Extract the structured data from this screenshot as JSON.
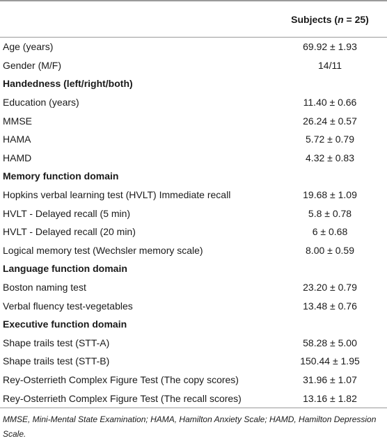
{
  "header": {
    "col1": "",
    "col2_prefix": "Subjects (",
    "col2_n": "n",
    "col2_suffix": " = 25)"
  },
  "rows": [
    {
      "label": "Age (years)",
      "value": "69.92 ± 1.93",
      "section": false
    },
    {
      "label": "Gender (M/F)",
      "value": "14/11",
      "section": false
    },
    {
      "label": "Handedness (left/right/both)",
      "value": "",
      "section": true
    },
    {
      "label": "Education (years)",
      "value": "11.40 ± 0.66",
      "section": false
    },
    {
      "label": "MMSE",
      "value": "26.24 ± 0.57",
      "section": false
    },
    {
      "label": "HAMA",
      "value": "5.72 ± 0.79",
      "section": false
    },
    {
      "label": "HAMD",
      "value": "4.32 ± 0.83",
      "section": false
    },
    {
      "label": "Memory function domain",
      "value": "",
      "section": true
    },
    {
      "label": "Hopkins verbal learning test (HVLT) Immediate recall",
      "value": "19.68 ± 1.09",
      "section": false
    },
    {
      "label": "HVLT - Delayed recall (5 min)",
      "value": "5.8 ± 0.78",
      "section": false
    },
    {
      "label": "HVLT - Delayed recall (20 min)",
      "value": "6 ± 0.68",
      "section": false
    },
    {
      "label": "Logical memory test (Wechsler memory scale)",
      "value": "8.00 ± 0.59",
      "section": false
    },
    {
      "label": "Language function domain",
      "value": "",
      "section": true
    },
    {
      "label": "Boston naming test",
      "value": "23.20 ± 0.79",
      "section": false
    },
    {
      "label": "Verbal fluency test-vegetables",
      "value": "13.48 ± 0.76",
      "section": false
    },
    {
      "label": "Executive function domain",
      "value": "",
      "section": true
    },
    {
      "label": "Shape trails test (STT-A)",
      "value": "58.28 ± 5.00",
      "section": false
    },
    {
      "label": "Shape trails test (STT-B)",
      "value": "150.44 ± 1.95",
      "section": false
    },
    {
      "label": "Rey-Osterrieth Complex Figure Test (The copy scores)",
      "value": "31.96 ± 1.07",
      "section": false
    },
    {
      "label": "Rey-Osterrieth Complex Figure Test (The recall scores)",
      "value": "13.16 ± 1.82",
      "section": false
    }
  ],
  "footnote": "MMSE, Mini-Mental State Examination; HAMA, Hamilton Anxiety Scale; HAMD, Hamilton Depression Scale."
}
